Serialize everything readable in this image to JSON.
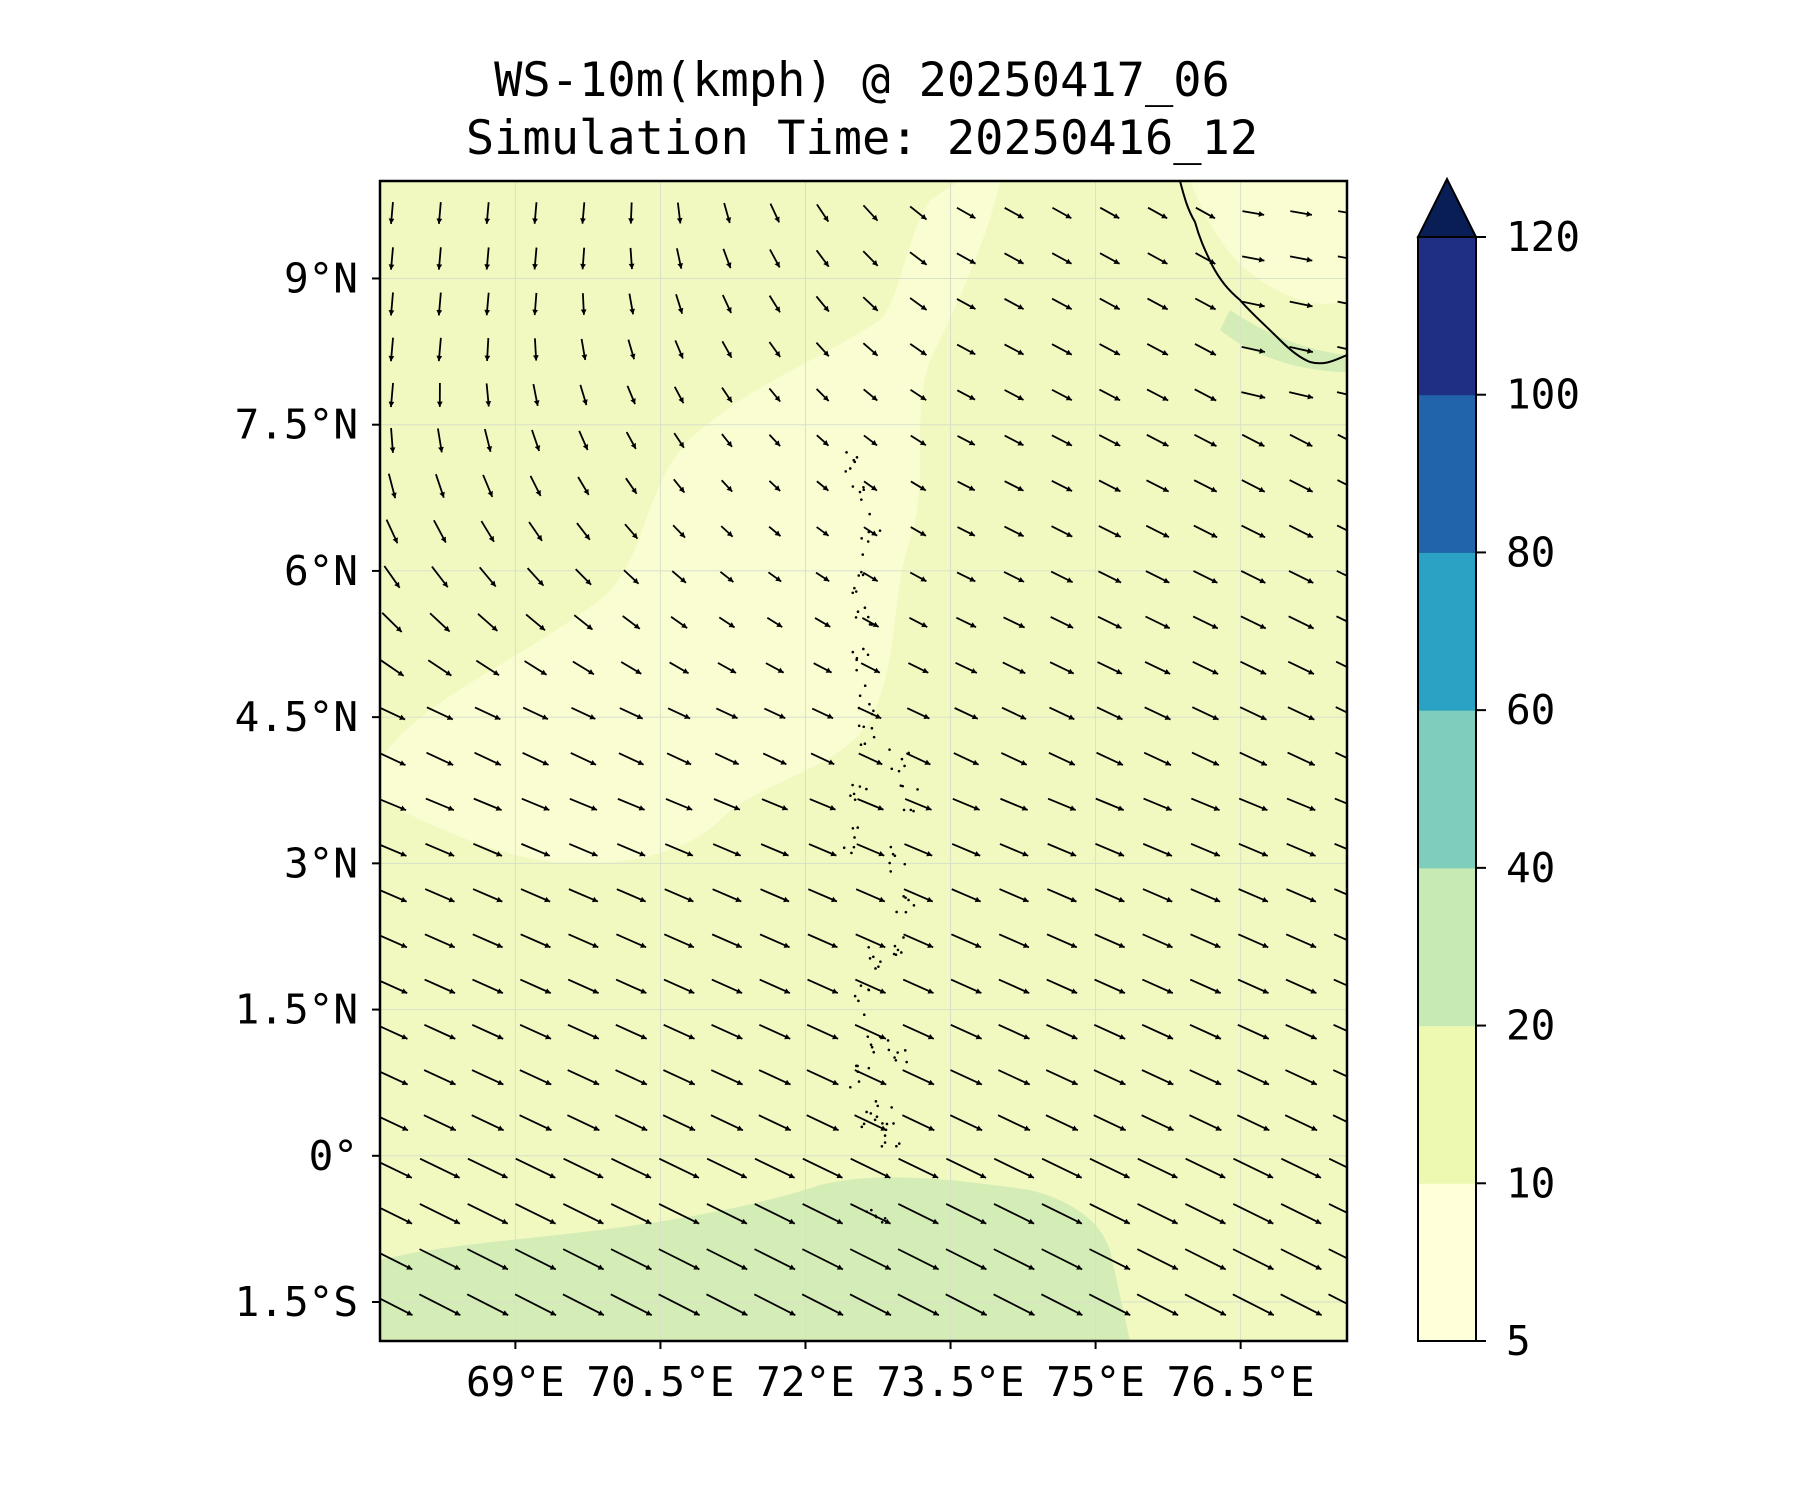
{
  "title": {
    "line1": "WS-10m(kmph) @ 20250417_06",
    "line2": "Simulation Time: 20250416_12"
  },
  "map": {
    "lon_range": [
      67.6,
      77.6
    ],
    "lat_range": [
      -1.9,
      10.0
    ],
    "field_name": "10 m wind speed",
    "units": "kmph",
    "background_fill": "#f1f9c1",
    "calm_zone_fill": "#fafdd2",
    "strong_zone_fill": "#d4edb7",
    "coastline_color": "#000000",
    "gridline_color": "#d8e0c8"
  },
  "x_ticks": [
    {
      "value": 69,
      "label": "69°E"
    },
    {
      "value": 70.5,
      "label": "70.5°E"
    },
    {
      "value": 72,
      "label": "72°E"
    },
    {
      "value": 73.5,
      "label": "73.5°E"
    },
    {
      "value": 75,
      "label": "75°E"
    },
    {
      "value": 76.5,
      "label": "76.5°E"
    }
  ],
  "y_ticks": [
    {
      "value": 9,
      "label": "9°N"
    },
    {
      "value": 7.5,
      "label": "7.5°N"
    },
    {
      "value": 6,
      "label": "6°N"
    },
    {
      "value": 4.5,
      "label": "4.5°N"
    },
    {
      "value": 3,
      "label": "3°N"
    },
    {
      "value": 1.5,
      "label": "1.5°N"
    },
    {
      "value": 0,
      "label": "0°"
    },
    {
      "value": -1.5,
      "label": "1.5°S"
    }
  ],
  "colorbar": {
    "bins": [
      {
        "from": 5,
        "to": 10,
        "color": "#ffffd9"
      },
      {
        "from": 10,
        "to": 20,
        "color": "#edf8b1"
      },
      {
        "from": 20,
        "to": 40,
        "color": "#c7e9b4"
      },
      {
        "from": 40,
        "to": 60,
        "color": "#7fcdbb"
      },
      {
        "from": 60,
        "to": 80,
        "color": "#2ba2c4"
      },
      {
        "from": 80,
        "to": 100,
        "color": "#2264ab"
      },
      {
        "from": 100,
        "to": 120,
        "color": "#1e2f84"
      }
    ],
    "extend_max_color": "#0a1e56",
    "extend": "max",
    "tick_labels": [
      "5",
      "10",
      "20",
      "40",
      "60",
      "80",
      "100",
      "120"
    ]
  },
  "wind_vectors": {
    "description_grid_lon": [
      68.1,
      68.6,
      69.1,
      69.6,
      70.1,
      70.6,
      71.1,
      71.6,
      72.1,
      72.6,
      73.1,
      73.6,
      74.1,
      74.6,
      75.1,
      75.6,
      76.1,
      76.6,
      77.1
    ],
    "regime": "northerly in the north-west, westerly/north-westerly across the south and east",
    "arrow_color": "#000000"
  }
}
